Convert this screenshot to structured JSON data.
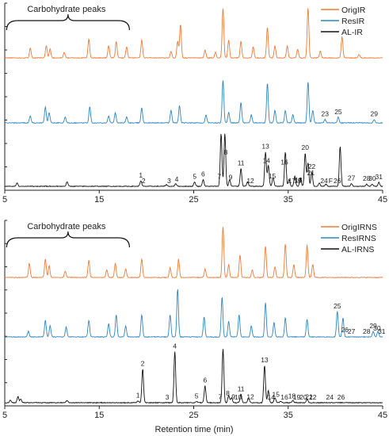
{
  "chart_data": [
    {
      "type": "line",
      "title": "",
      "xlabel": "",
      "ylabel": "",
      "xlim": [
        5,
        45
      ],
      "x_ticks": [
        5,
        15,
        25,
        35,
        45
      ],
      "grid": false,
      "legend_position": "top-right",
      "bracket_label": "Carbohydrate peaks",
      "bracket_range": [
        5.2,
        18.2
      ],
      "series": [
        {
          "name": "OrigIR",
          "color": "#f07b36",
          "peaks": [
            {
              "x": 7.7,
              "h": 0.18
            },
            {
              "x": 9.4,
              "h": 0.22
            },
            {
              "x": 9.8,
              "h": 0.16
            },
            {
              "x": 11.3,
              "h": 0.1
            },
            {
              "x": 13.9,
              "h": 0.34
            },
            {
              "x": 16.0,
              "h": 0.22
            },
            {
              "x": 16.8,
              "h": 0.3
            },
            {
              "x": 17.9,
              "h": 0.2
            },
            {
              "x": 19.5,
              "h": 0.32
            },
            {
              "x": 22.6,
              "h": 0.12
            },
            {
              "x": 23.3,
              "h": 0.3
            },
            {
              "x": 23.6,
              "h": 0.6
            },
            {
              "x": 26.2,
              "h": 0.14
            },
            {
              "x": 27.3,
              "h": 0.1
            },
            {
              "x": 28.1,
              "h": 0.9
            },
            {
              "x": 28.7,
              "h": 0.32
            },
            {
              "x": 30.0,
              "h": 0.3
            },
            {
              "x": 31.3,
              "h": 0.2
            },
            {
              "x": 32.8,
              "h": 0.55
            },
            {
              "x": 33.6,
              "h": 0.22
            },
            {
              "x": 34.9,
              "h": 0.22
            },
            {
              "x": 36.0,
              "h": 0.16
            },
            {
              "x": 37.1,
              "h": 0.9
            },
            {
              "x": 38.4,
              "h": 0.12
            },
            {
              "x": 40.7,
              "h": 0.38
            },
            {
              "x": 42.5,
              "h": 0.06
            }
          ]
        },
        {
          "name": "ResIR",
          "color": "#2e86c1",
          "peaks": [
            {
              "x": 7.7,
              "h": 0.12
            },
            {
              "x": 9.3,
              "h": 0.28
            },
            {
              "x": 9.7,
              "h": 0.18
            },
            {
              "x": 11.4,
              "h": 0.1
            },
            {
              "x": 14.0,
              "h": 0.28
            },
            {
              "x": 16.0,
              "h": 0.12
            },
            {
              "x": 16.7,
              "h": 0.18
            },
            {
              "x": 17.9,
              "h": 0.1
            },
            {
              "x": 19.5,
              "h": 0.26
            },
            {
              "x": 22.6,
              "h": 0.22
            },
            {
              "x": 23.5,
              "h": 0.3
            },
            {
              "x": 26.3,
              "h": 0.14
            },
            {
              "x": 28.1,
              "h": 0.75
            },
            {
              "x": 28.7,
              "h": 0.18
            },
            {
              "x": 30.0,
              "h": 0.36
            },
            {
              "x": 31.1,
              "h": 0.14
            },
            {
              "x": 32.8,
              "h": 0.7
            },
            {
              "x": 33.6,
              "h": 0.22
            },
            {
              "x": 34.7,
              "h": 0.22
            },
            {
              "x": 35.5,
              "h": 0.14
            },
            {
              "x": 37.1,
              "h": 0.72
            },
            {
              "x": 37.6,
              "h": 0.22
            },
            {
              "x": 38.9,
              "h": 0.06
            },
            {
              "x": 40.3,
              "h": 0.1
            },
            {
              "x": 44.1,
              "h": 0.06
            }
          ]
        },
        {
          "name": "AL-IR",
          "color": "#111111",
          "peaks": [
            {
              "x": 6.3,
              "h": 0.06
            },
            {
              "x": 11.6,
              "h": 0.08
            },
            {
              "x": 19.4,
              "h": 0.1
            },
            {
              "x": 22.1,
              "h": 0.03
            },
            {
              "x": 23.1,
              "h": 0.05
            },
            {
              "x": 25.1,
              "h": 0.08
            },
            {
              "x": 26.0,
              "h": 0.12
            },
            {
              "x": 27.9,
              "h": 0.95
            },
            {
              "x": 28.3,
              "h": 0.95
            },
            {
              "x": 28.8,
              "h": 0.12
            },
            {
              "x": 30.0,
              "h": 0.32
            },
            {
              "x": 30.7,
              "h": 0.08
            },
            {
              "x": 32.6,
              "h": 0.62
            },
            {
              "x": 32.9,
              "h": 0.38
            },
            {
              "x": 33.4,
              "h": 0.16
            },
            {
              "x": 34.7,
              "h": 0.62
            },
            {
              "x": 35.1,
              "h": 0.12
            },
            {
              "x": 35.7,
              "h": 0.18
            },
            {
              "x": 36.3,
              "h": 0.15
            },
            {
              "x": 36.8,
              "h": 0.6
            },
            {
              "x": 37.1,
              "h": 0.42
            },
            {
              "x": 37.5,
              "h": 0.26
            },
            {
              "x": 38.3,
              "h": 0.06
            },
            {
              "x": 39.0,
              "h": 0.04
            },
            {
              "x": 40.5,
              "h": 0.72
            },
            {
              "x": 41.7,
              "h": 0.05
            },
            {
              "x": 43.3,
              "h": 0.04
            },
            {
              "x": 43.9,
              "h": 0.04
            },
            {
              "x": 44.6,
              "h": 0.07
            }
          ]
        }
      ],
      "peak_labels": [
        {
          "text": "1",
          "x": 19.4,
          "series": "AL-IR"
        },
        {
          "text": "2",
          "x": 19.7,
          "series": "AL-IR"
        },
        {
          "text": "3",
          "x": 22.4,
          "series": "AL-IR"
        },
        {
          "text": "4",
          "x": 23.2,
          "series": "AL-IR"
        },
        {
          "text": "5",
          "x": 25.1,
          "series": "AL-IR"
        },
        {
          "text": "6",
          "x": 26.0,
          "series": "AL-IR"
        },
        {
          "text": "7",
          "x": 27.7,
          "series": "AL-IR"
        },
        {
          "text": "8",
          "x": 28.4,
          "series": "AL-IR"
        },
        {
          "text": "9",
          "x": 28.9,
          "series": "AL-IR"
        },
        {
          "text": "11",
          "x": 30.0,
          "series": "AL-IR"
        },
        {
          "text": "12",
          "x": 31.0,
          "series": "AL-IR"
        },
        {
          "text": "13",
          "x": 32.6,
          "series": "AL-IR"
        },
        {
          "text": "14",
          "x": 32.7,
          "series": "AL-IR"
        },
        {
          "text": "15",
          "x": 33.3,
          "series": "AL-IR"
        },
        {
          "text": "16",
          "x": 34.6,
          "series": "AL-IR"
        },
        {
          "text": "17",
          "x": 35.4,
          "series": "AL-IR"
        },
        {
          "text": "18",
          "x": 36.1,
          "series": "AL-IR"
        },
        {
          "text": "19",
          "x": 36.0,
          "series": "AL-IR"
        },
        {
          "text": "20",
          "x": 36.8,
          "series": "AL-IR"
        },
        {
          "text": "21",
          "x": 37.4,
          "series": "AL-IR"
        },
        {
          "text": "22",
          "x": 37.5,
          "series": "AL-IR"
        },
        {
          "text": "24",
          "x": 38.8,
          "series": "AL-IR"
        },
        {
          "text": "F",
          "x": 39.5,
          "series": "AL-IR"
        },
        {
          "text": "26",
          "x": 40.2,
          "series": "AL-IR"
        },
        {
          "text": "27",
          "x": 41.7,
          "series": "AL-IR"
        },
        {
          "text": "28",
          "x": 43.3,
          "series": "AL-IR"
        },
        {
          "text": "30",
          "x": 43.9,
          "series": "AL-IR"
        },
        {
          "text": "31",
          "x": 44.6,
          "series": "AL-IR"
        },
        {
          "text": "23",
          "x": 38.9,
          "series": "ResIR"
        },
        {
          "text": "25",
          "x": 40.3,
          "series": "ResIR"
        },
        {
          "text": "29",
          "x": 44.1,
          "series": "ResIR"
        }
      ]
    },
    {
      "type": "line",
      "title": "",
      "xlabel": "Retention time (min)",
      "ylabel": "",
      "xlim": [
        5,
        45
      ],
      "x_ticks": [
        5,
        15,
        25,
        35,
        45
      ],
      "grid": false,
      "legend_position": "top-right",
      "bracket_label": "Carbohydrate peaks",
      "bracket_range": [
        5.2,
        18.2
      ],
      "series": [
        {
          "name": "OrigIRNS",
          "color": "#f07b36",
          "peaks": [
            {
              "x": 7.6,
              "h": 0.26
            },
            {
              "x": 9.3,
              "h": 0.34
            },
            {
              "x": 9.7,
              "h": 0.22
            },
            {
              "x": 11.4,
              "h": 0.12
            },
            {
              "x": 13.9,
              "h": 0.32
            },
            {
              "x": 15.8,
              "h": 0.14
            },
            {
              "x": 16.7,
              "h": 0.26
            },
            {
              "x": 17.8,
              "h": 0.16
            },
            {
              "x": 19.5,
              "h": 0.34
            },
            {
              "x": 22.5,
              "h": 0.18
            },
            {
              "x": 23.4,
              "h": 0.34
            },
            {
              "x": 26.2,
              "h": 0.16
            },
            {
              "x": 28.1,
              "h": 0.95
            },
            {
              "x": 28.7,
              "h": 0.24
            },
            {
              "x": 29.9,
              "h": 0.42
            },
            {
              "x": 31.2,
              "h": 0.14
            },
            {
              "x": 32.6,
              "h": 0.58
            },
            {
              "x": 33.6,
              "h": 0.2
            },
            {
              "x": 34.7,
              "h": 0.62
            },
            {
              "x": 35.6,
              "h": 0.24
            },
            {
              "x": 37.0,
              "h": 0.6
            },
            {
              "x": 37.6,
              "h": 0.24
            }
          ]
        },
        {
          "name": "ResIRNS",
          "color": "#2e86c1",
          "peaks": [
            {
              "x": 7.5,
              "h": 0.1
            },
            {
              "x": 9.3,
              "h": 0.3
            },
            {
              "x": 9.8,
              "h": 0.2
            },
            {
              "x": 11.5,
              "h": 0.18
            },
            {
              "x": 13.9,
              "h": 0.3
            },
            {
              "x": 16.0,
              "h": 0.24
            },
            {
              "x": 16.8,
              "h": 0.4
            },
            {
              "x": 17.8,
              "h": 0.2
            },
            {
              "x": 19.5,
              "h": 0.4
            },
            {
              "x": 22.5,
              "h": 0.4
            },
            {
              "x": 23.3,
              "h": 0.86
            },
            {
              "x": 26.1,
              "h": 0.36
            },
            {
              "x": 28.0,
              "h": 0.72
            },
            {
              "x": 28.7,
              "h": 0.28
            },
            {
              "x": 29.8,
              "h": 0.4
            },
            {
              "x": 31.1,
              "h": 0.2
            },
            {
              "x": 32.6,
              "h": 0.62
            },
            {
              "x": 33.5,
              "h": 0.26
            },
            {
              "x": 34.7,
              "h": 0.34
            },
            {
              "x": 37.0,
              "h": 0.32
            },
            {
              "x": 40.2,
              "h": 0.46
            },
            {
              "x": 40.8,
              "h": 0.34
            },
            {
              "x": 44.0,
              "h": 0.1
            },
            {
              "x": 44.5,
              "h": 0.1
            }
          ]
        },
        {
          "name": "AL-IRNS",
          "color": "#111111",
          "peaks": [
            {
              "x": 5.6,
              "h": 0.04
            },
            {
              "x": 6.4,
              "h": 0.1
            },
            {
              "x": 6.7,
              "h": 0.06
            },
            {
              "x": 11.6,
              "h": 0.04
            },
            {
              "x": 19.1,
              "h": 0.03
            },
            {
              "x": 19.6,
              "h": 0.56
            },
            {
              "x": 23.0,
              "h": 0.85
            },
            {
              "x": 25.3,
              "h": 0.02
            },
            {
              "x": 26.2,
              "h": 0.28
            },
            {
              "x": 28.1,
              "h": 0.9
            },
            {
              "x": 28.7,
              "h": 0.12
            },
            {
              "x": 29.0,
              "h": 0.08
            },
            {
              "x": 30.0,
              "h": 0.14
            },
            {
              "x": 30.8,
              "h": 0.08
            },
            {
              "x": 32.5,
              "h": 0.62
            },
            {
              "x": 32.9,
              "h": 0.2
            },
            {
              "x": 33.6,
              "h": 0.08
            },
            {
              "x": 34.2,
              "h": 0.02
            },
            {
              "x": 35.5,
              "h": 0.04
            },
            {
              "x": 37.0,
              "h": 0.06
            }
          ]
        }
      ],
      "peak_labels": [
        {
          "text": "1",
          "x": 19.1,
          "series": "AL-IRNS"
        },
        {
          "text": "2",
          "x": 19.6,
          "series": "AL-IRNS"
        },
        {
          "text": "3",
          "x": 22.2,
          "series": "AL-IRNS"
        },
        {
          "text": "4",
          "x": 23.0,
          "series": "AL-IRNS"
        },
        {
          "text": "5",
          "x": 25.3,
          "series": "AL-IRNS"
        },
        {
          "text": "6",
          "x": 26.2,
          "series": "AL-IRNS"
        },
        {
          "text": "7",
          "x": 27.8,
          "series": "AL-IRNS"
        },
        {
          "text": "8",
          "x": 28.6,
          "series": "AL-IRNS"
        },
        {
          "text": "9",
          "x": 29.2,
          "series": "AL-IRNS"
        },
        {
          "text": "10",
          "x": 29.7,
          "series": "AL-IRNS"
        },
        {
          "text": "11",
          "x": 30.0,
          "series": "AL-IRNS"
        },
        {
          "text": "12",
          "x": 31.0,
          "series": "AL-IRNS"
        },
        {
          "text": "13",
          "x": 32.5,
          "series": "AL-IRNS"
        },
        {
          "text": "14",
          "x": 33.2,
          "series": "AL-IRNS"
        },
        {
          "text": "15",
          "x": 33.7,
          "series": "AL-IRNS"
        },
        {
          "text": "16",
          "x": 34.6,
          "series": "AL-IRNS"
        },
        {
          "text": "18",
          "x": 35.4,
          "series": "AL-IRNS"
        },
        {
          "text": "19",
          "x": 35.9,
          "series": "AL-IRNS"
        },
        {
          "text": "20",
          "x": 36.6,
          "series": "AL-IRNS"
        },
        {
          "text": "21",
          "x": 37.2,
          "series": "AL-IRNS"
        },
        {
          "text": "22",
          "x": 37.6,
          "series": "AL-IRNS"
        },
        {
          "text": "24",
          "x": 39.4,
          "series": "AL-IRNS"
        },
        {
          "text": "26",
          "x": 40.6,
          "series": "AL-IRNS"
        },
        {
          "text": "25",
          "x": 40.2,
          "series": "ResIRNS"
        },
        {
          "text": "26",
          "x": 41.0,
          "series": "ResIRNS"
        },
        {
          "text": "27",
          "x": 41.7,
          "series": "ResIRNS"
        },
        {
          "text": "28",
          "x": 43.3,
          "series": "ResIRNS"
        },
        {
          "text": "29",
          "x": 44.0,
          "series": "ResIRNS"
        },
        {
          "text": "30",
          "x": 44.4,
          "series": "ResIRNS"
        },
        {
          "text": "31",
          "x": 44.9,
          "series": "ResIRNS"
        }
      ]
    }
  ]
}
